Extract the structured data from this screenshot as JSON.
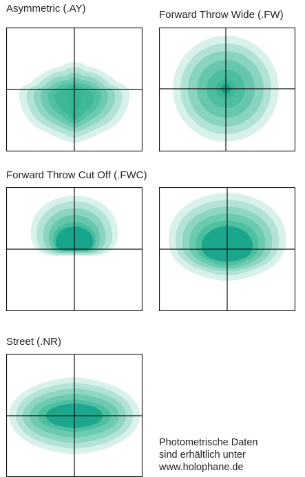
{
  "colors": {
    "band_fill": "#2fb391",
    "core_fill": "#0fa187",
    "outline": "#111111",
    "text": "#222222"
  },
  "labels": {
    "asymmetric": "Asymmetric (.AY)",
    "forward_throw_wide": "Forward Throw Wide (.FW)",
    "forward_throw_cut_off": "Forward Throw Cut Off  (.FWC)",
    "street": "Street (.NR)"
  },
  "note": {
    "line1": "Photometrische Daten",
    "line2": "sind erhältlich unter",
    "line3": "www.holophane.de"
  },
  "patterns": {
    "asymmetric": "asymmetric",
    "forward_throw_wide": "concentric",
    "fwc_a": "forward-cutoff",
    "fwc_b": "forward-cutoff-wide",
    "street": "street"
  }
}
